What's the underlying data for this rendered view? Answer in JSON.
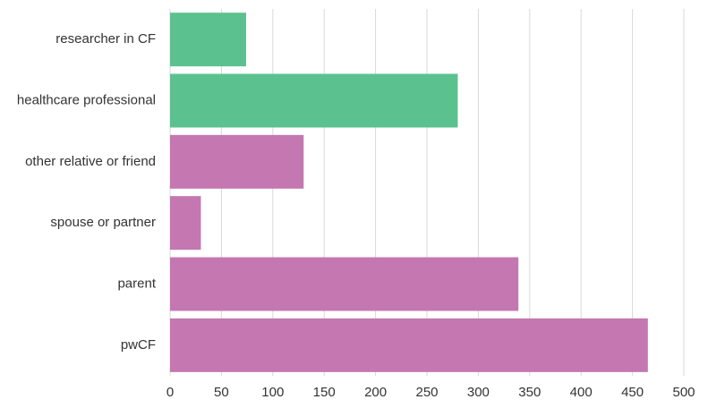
{
  "chart_data": {
    "type": "barh",
    "categories": [
      "researcher in CF",
      "healthcare professional",
      "other relative or friend",
      "spouse or partner",
      "parent",
      "pwCF"
    ],
    "values": [
      74,
      280,
      130,
      30,
      339,
      465
    ],
    "colors": [
      "#5bc28f",
      "#5bc28f",
      "#c477b0",
      "#c477b0",
      "#c477b0",
      "#c477b0"
    ],
    "xlim": [
      0,
      500
    ],
    "xticks": [
      0,
      50,
      100,
      150,
      200,
      250,
      300,
      350,
      400,
      450,
      500
    ],
    "grid": true
  }
}
